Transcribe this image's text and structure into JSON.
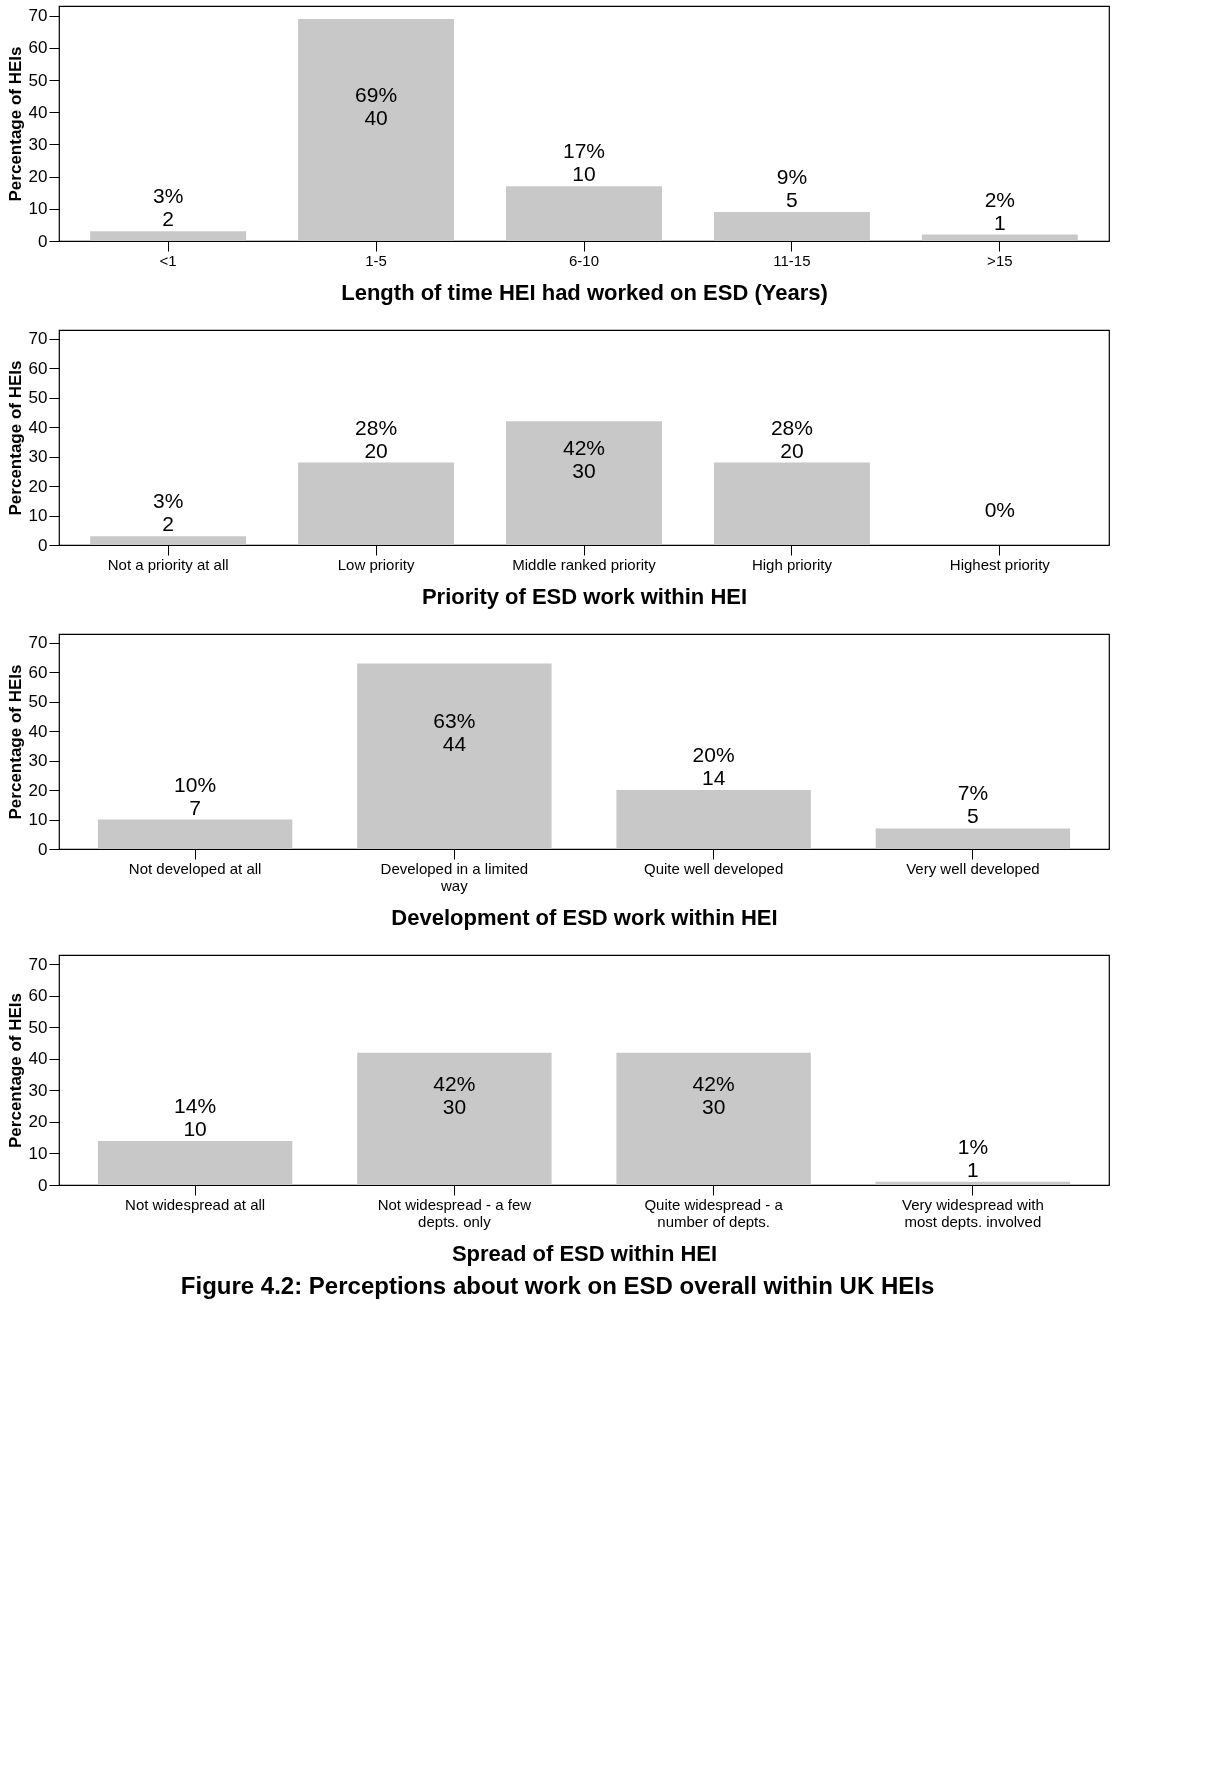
{
  "chart_data": [
    {
      "type": "bar",
      "xlabel": "Length of time HEI had worked on ESD (Years)",
      "ylabel": "Percentage of HEIs",
      "categories": [
        "<1",
        "1-5",
        "6-10",
        "11-15",
        ">15"
      ],
      "color": "#c8c8c8",
      "values": [
        3,
        69,
        17,
        9,
        2
      ],
      "value_labels": [
        "3%\n2",
        "69%\n40",
        "17%\n10",
        "9%\n5",
        "2%\n1"
      ],
      "ylim": [
        0,
        73
      ],
      "yticks": [
        0,
        10,
        20,
        30,
        40,
        50,
        60,
        70
      ],
      "grid": false
    },
    {
      "type": "bar",
      "xlabel": "Priority of ESD work within HEI",
      "ylabel": "Percentage of HEIs",
      "categories": [
        "Not a priority at all",
        "Low priority",
        "Middle ranked priority",
        "High priority",
        "Highest priority"
      ],
      "color": "#c8c8c8",
      "values": [
        3,
        28,
        42,
        28,
        0
      ],
      "value_labels": [
        "3%\n2",
        "28%\n20",
        "42%\n30",
        "28%\n20",
        "0%"
      ],
      "ylim": [
        0,
        73
      ],
      "yticks": [
        0,
        10,
        20,
        30,
        40,
        50,
        60,
        70
      ],
      "grid": false
    },
    {
      "type": "bar",
      "xlabel": "Development of ESD work within HEI",
      "ylabel": "Percentage of HEIs",
      "categories": [
        "Not developed at all",
        "Developed in a limited way",
        "Quite well developed",
        "Very well developed"
      ],
      "color": "#c8c8c8",
      "values": [
        10,
        63,
        20,
        7
      ],
      "value_labels": [
        "10%\n7",
        "63%\n44",
        "20%\n14",
        "7%\n5"
      ],
      "ylim": [
        0,
        73
      ],
      "yticks": [
        0,
        10,
        20,
        30,
        40,
        50,
        60,
        70
      ],
      "grid": false
    },
    {
      "type": "bar",
      "xlabel": "Spread of ESD within HEI",
      "ylabel": "Percentage of HEIs",
      "categories": [
        "Not widespread at all",
        "Not widespread - a few depts. only",
        "Quite widespread - a number of depts.",
        "Very widespread with most depts. involved"
      ],
      "color": "#c8c8c8",
      "values": [
        14,
        42,
        42,
        1
      ],
      "value_labels": [
        "14%\n10",
        "42%\n30",
        "42%\n30",
        "1%\n1"
      ],
      "ylim": [
        0,
        73
      ],
      "yticks": [
        0,
        10,
        20,
        30,
        40,
        50,
        60,
        70
      ],
      "grid": false,
      "annotations": [
        "Figure 4.2: Perceptions about work on ESD overall within UK HEIs"
      ]
    }
  ]
}
